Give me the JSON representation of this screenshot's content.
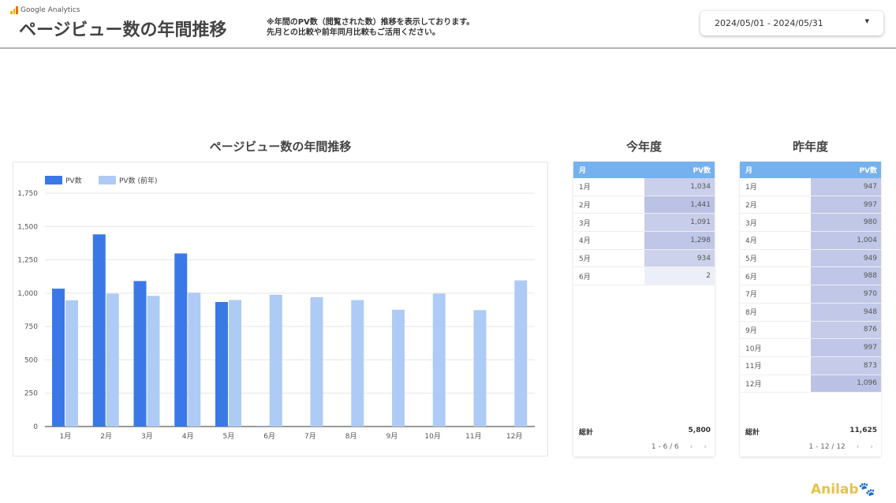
{
  "header": {
    "brand": "Google Analytics",
    "title": "ページビュー数の年間推移",
    "note_line1": "※年間のPV数（閲覧された数）推移を表示しております。",
    "note_line2": "先月との比較や前年同月比較もご活用ください。",
    "date_range": "2024/05/01 - 2024/05/31",
    "dropdown_icon": "caret-down"
  },
  "chart_title": "ページビュー数の年間推移",
  "chart_data": {
    "type": "bar",
    "categories": [
      "1月",
      "2月",
      "3月",
      "4月",
      "5月",
      "6月",
      "7月",
      "8月",
      "9月",
      "10月",
      "11月",
      "12月"
    ],
    "series": [
      {
        "name": "PV数",
        "color": "#3b78e7",
        "values": [
          1034,
          1441,
          1091,
          1298,
          934,
          2,
          null,
          null,
          null,
          null,
          null,
          null
        ]
      },
      {
        "name": "PV数 (前年)",
        "color": "#aecbf5",
        "values": [
          947,
          997,
          980,
          1004,
          949,
          988,
          970,
          948,
          876,
          997,
          873,
          1096
        ]
      }
    ],
    "ylim": [
      0,
      1750
    ],
    "yticks": [
      "0",
      "250",
      "500",
      "750",
      "1,000",
      "1,250",
      "1,500",
      "1,750"
    ],
    "grid": true,
    "legend": "top-left"
  },
  "this_year": {
    "title": "今年度",
    "col_month": "月",
    "col_pv": "PV数",
    "rows": [
      {
        "m": "1月",
        "v": "1,034",
        "n": 1034
      },
      {
        "m": "2月",
        "v": "1,441",
        "n": 1441
      },
      {
        "m": "3月",
        "v": "1,091",
        "n": 1091
      },
      {
        "m": "4月",
        "v": "1,298",
        "n": 1298
      },
      {
        "m": "5月",
        "v": "934",
        "n": 934
      },
      {
        "m": "6月",
        "v": "2",
        "n": 2
      }
    ],
    "total_label": "総計",
    "total": "5,800",
    "pagination": "1 - 6 / 6"
  },
  "last_year": {
    "title": "昨年度",
    "col_month": "月",
    "col_pv": "PV数",
    "rows": [
      {
        "m": "1月",
        "v": "947",
        "n": 947
      },
      {
        "m": "2月",
        "v": "997",
        "n": 997
      },
      {
        "m": "3月",
        "v": "980",
        "n": 980
      },
      {
        "m": "4月",
        "v": "1,004",
        "n": 1004
      },
      {
        "m": "5月",
        "v": "949",
        "n": 949
      },
      {
        "m": "6月",
        "v": "988",
        "n": 988
      },
      {
        "m": "7月",
        "v": "970",
        "n": 970
      },
      {
        "m": "8月",
        "v": "948",
        "n": 948
      },
      {
        "m": "9月",
        "v": "876",
        "n": 876
      },
      {
        "m": "10月",
        "v": "997",
        "n": 997
      },
      {
        "m": "11月",
        "v": "873",
        "n": 873
      },
      {
        "m": "12月",
        "v": "1,096",
        "n": 1096
      }
    ],
    "total_label": "総計",
    "total": "11,625",
    "pagination": "1 - 12 / 12"
  },
  "footer_logo": "Anilab"
}
